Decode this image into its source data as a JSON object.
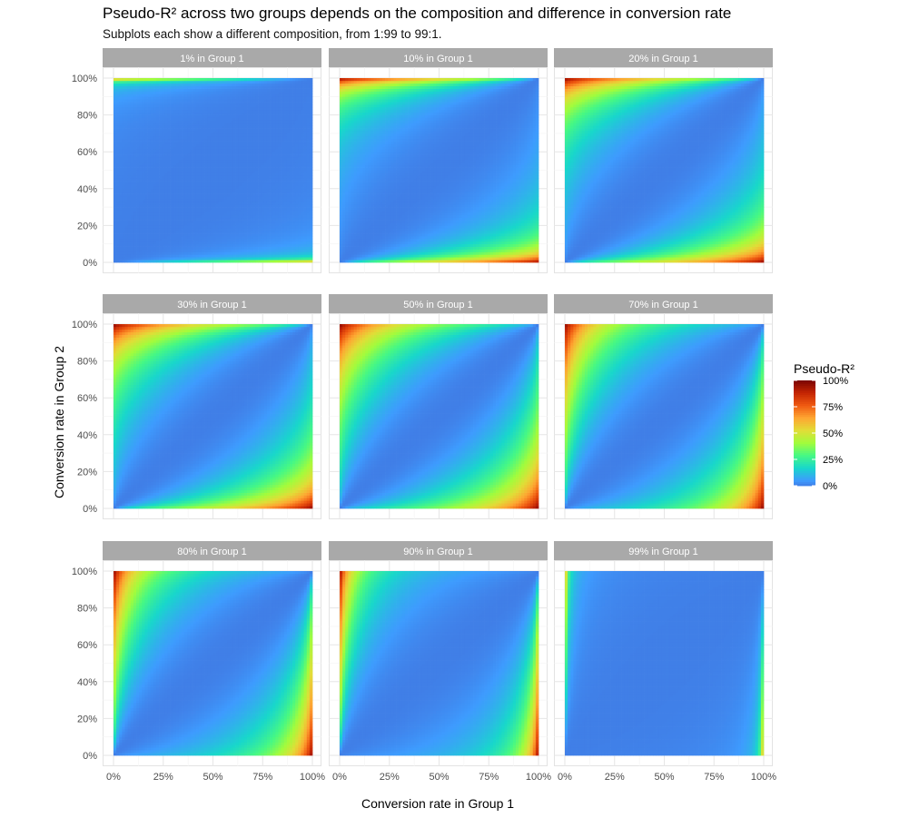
{
  "title": "Pseudo-R² across two groups depends on the composition and difference in conversion rate",
  "subtitle": "Subplots each show a different composition, from 1:99 to 99:1.",
  "chart_data": {
    "type": "heatmap",
    "title": "Pseudo-R² across two groups depends on the composition and difference in conversion rate",
    "subtitle": "Subplots each show a different composition, from 1:99 to 99:1.",
    "xlabel": "Conversion rate in Group 1",
    "ylabel": "Conversion rate in Group 2",
    "xlim": [
      0,
      1
    ],
    "ylim": [
      0,
      1
    ],
    "x_ticks": [
      "0%",
      "25%",
      "50%",
      "75%",
      "100%"
    ],
    "y_ticks": [
      "0%",
      "20%",
      "40%",
      "60%",
      "80%",
      "100%"
    ],
    "grid": true,
    "facet_variable": "share in Group 1",
    "facets": [
      {
        "label": "1% in Group 1",
        "group1_share": 0.01
      },
      {
        "label": "10% in Group 1",
        "group1_share": 0.1
      },
      {
        "label": "20% in Group 1",
        "group1_share": 0.2
      },
      {
        "label": "30% in Group 1",
        "group1_share": 0.3
      },
      {
        "label": "50% in Group 1",
        "group1_share": 0.5
      },
      {
        "label": "70% in Group 1",
        "group1_share": 0.7
      },
      {
        "label": "80% in Group 1",
        "group1_share": 0.8
      },
      {
        "label": "90% in Group 1",
        "group1_share": 0.9
      },
      {
        "label": "99% in Group 1",
        "group1_share": 0.99
      }
    ],
    "fill": {
      "name": "Pseudo-R²",
      "range": [
        0,
        1
      ],
      "breaks": [
        "0%",
        "25%",
        "50%",
        "75%",
        "100%"
      ],
      "palette": "turbo",
      "colors": [
        "#30123b",
        "#4454c4",
        "#3e9bfe",
        "#18d7cb",
        "#46f884",
        "#a2fc3c",
        "#e1dd37",
        "#fea632",
        "#ef5911",
        "#c42503",
        "#7a0403"
      ]
    },
    "legend_position": "right"
  }
}
